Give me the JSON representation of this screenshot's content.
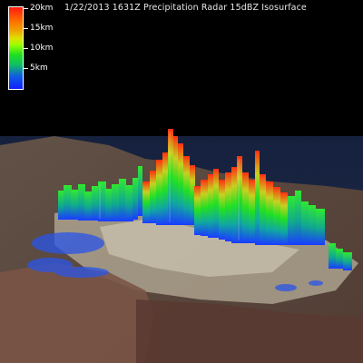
{
  "title": "1/22/2013 1631Z Precipitation Radar 15dBZ Isosurface",
  "legend": {
    "labels": [
      "20km",
      "15km",
      "10km",
      "5km"
    ],
    "colors": [
      "#ff1a10",
      "#ff6a00",
      "#e0e000",
      "#20e020",
      "#1060e0",
      "#1020ff"
    ]
  }
}
